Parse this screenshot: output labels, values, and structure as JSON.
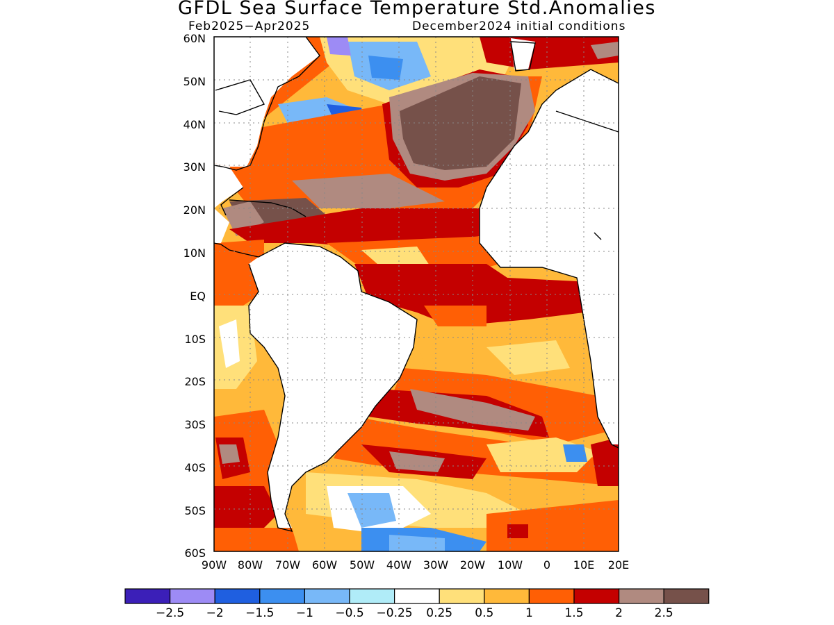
{
  "title": "GFDL Sea Surface Temperature Std.Anomalies",
  "period": "Feb2025−Apr2025",
  "initial_conditions": "December2024 initial conditions",
  "lat_labels": [
    "60N",
    "50N",
    "40N",
    "30N",
    "20N",
    "10N",
    "EQ",
    "10S",
    "20S",
    "30S",
    "40S",
    "50S",
    "60S"
  ],
  "lon_labels": [
    "90W",
    "80W",
    "70W",
    "60W",
    "50W",
    "40W",
    "30W",
    "20W",
    "10W",
    "0",
    "10E",
    "20E"
  ],
  "colorbar": {
    "colors": [
      "#3b1fb8",
      "#9d8bf5",
      "#1f5fe0",
      "#3c8ff0",
      "#78b8f8",
      "#b0ecf8",
      "#ffffff",
      "#ffe07a",
      "#ffb93a",
      "#ff5f05",
      "#c40000",
      "#b08a80",
      "#76514a"
    ],
    "labels": [
      "−2.5",
      "−2",
      "−1.5",
      "−1",
      "−0.5",
      "−0.25",
      "0.25",
      "0.5",
      "1",
      "1.5",
      "2",
      "2.5"
    ]
  },
  "colors": {
    "land": "#ffffff",
    "coast": "#000000",
    "grid": "#888888"
  }
}
